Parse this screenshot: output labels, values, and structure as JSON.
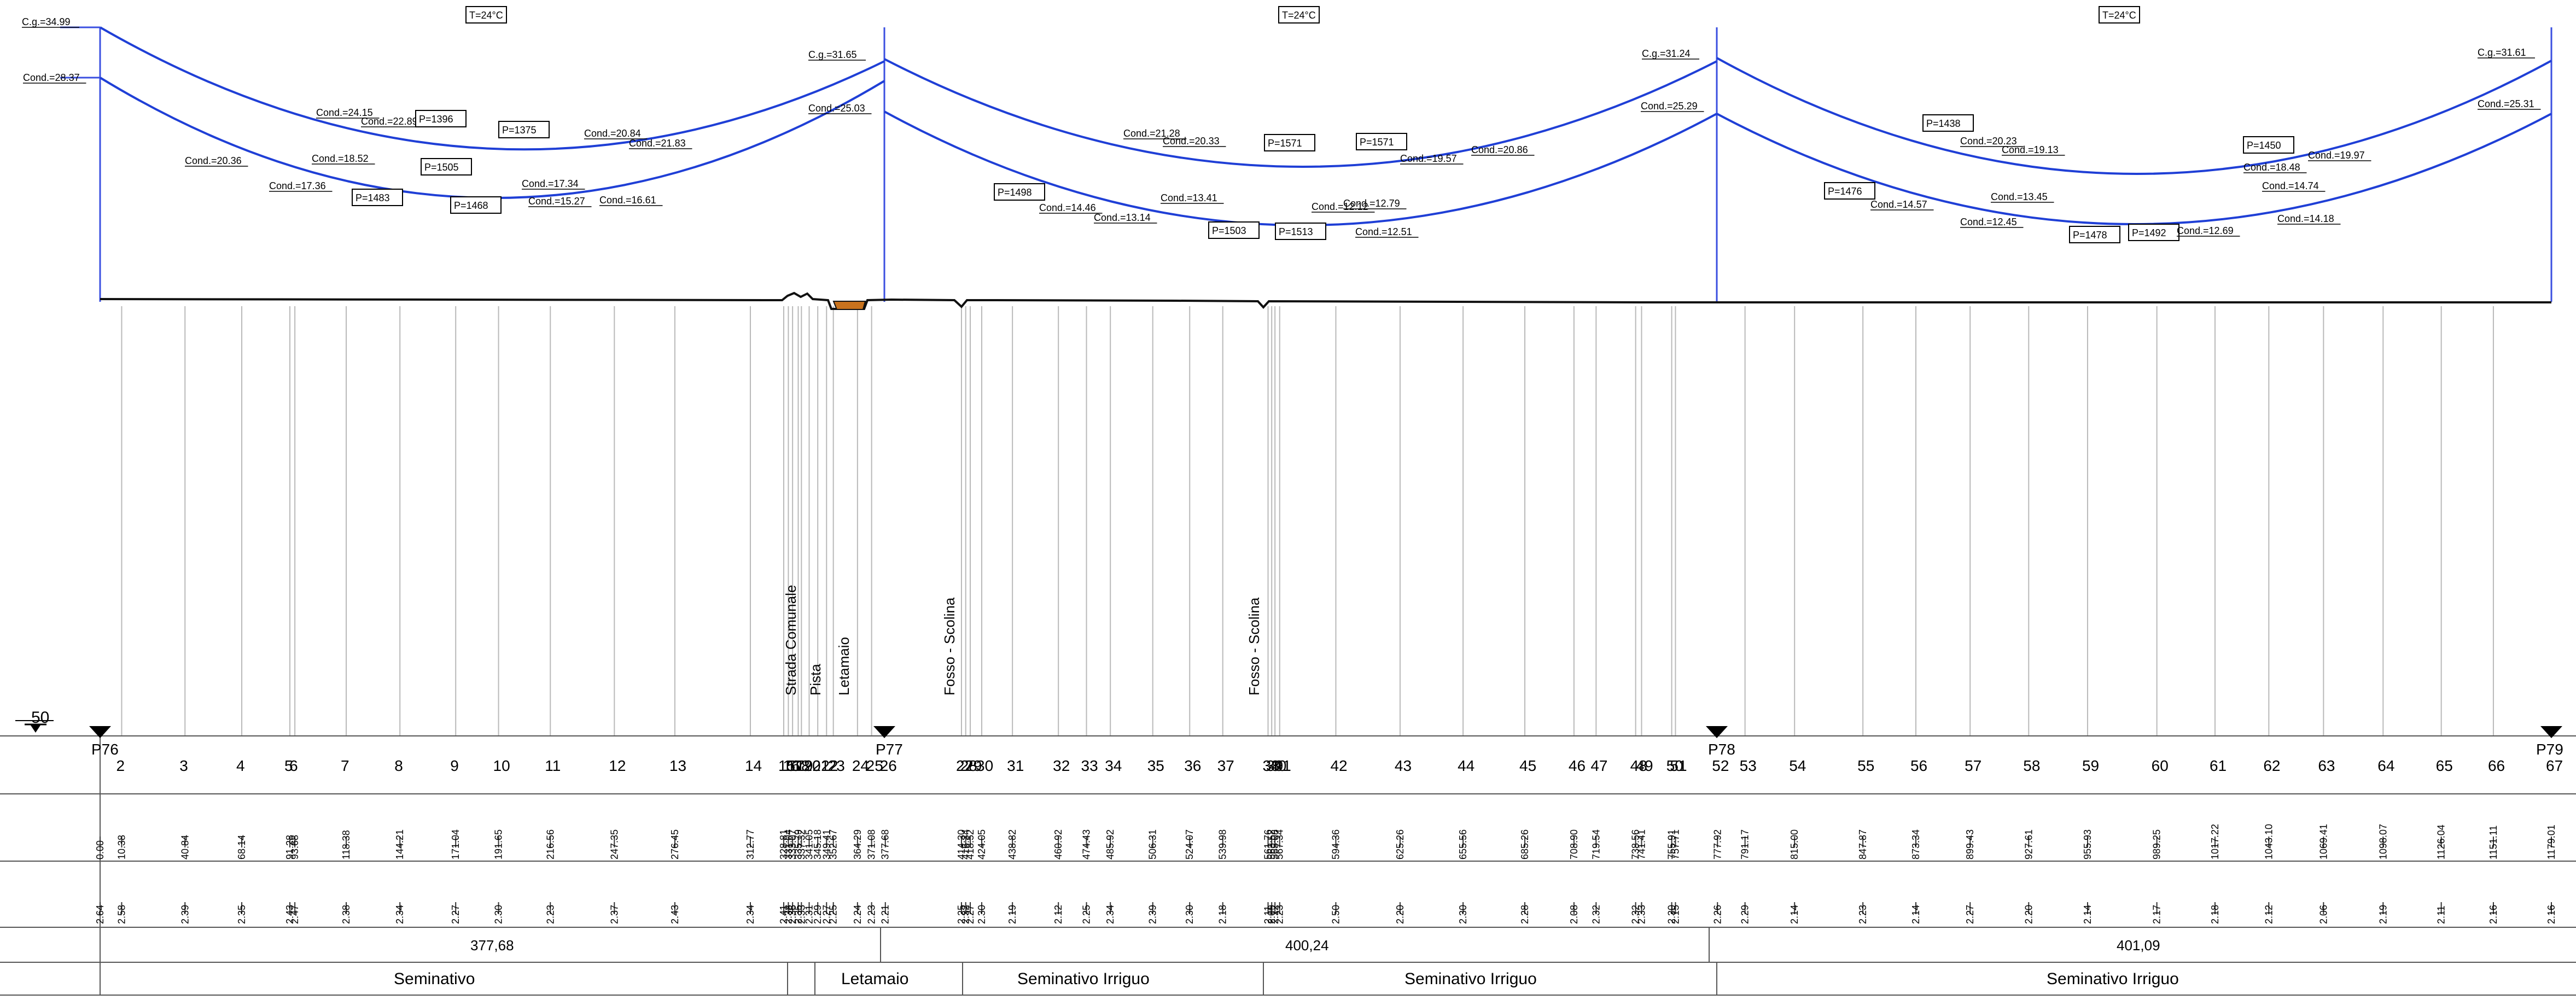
{
  "scale_label": "50",
  "temp_labels": [
    "T=24°C",
    "T=24°C",
    "T=24°C"
  ],
  "spans": [
    {
      "top": [
        {
          "text": "C.g.=34.99"
        },
        {
          "text": "Cond.=24.15"
        },
        {
          "text": "Cond.=22.89"
        },
        {
          "text": "P=1396",
          "box": true
        },
        {
          "text": "P=1375",
          "box": true
        },
        {
          "text": "Cond.=20.84"
        },
        {
          "text": "Cond.=21.83"
        },
        {
          "text": "C.g.=31.65"
        }
      ],
      "bottom": [
        {
          "text": "Cond.=28.37"
        },
        {
          "text": "Cond.=20.36"
        },
        {
          "text": "Cond.=18.52"
        },
        {
          "text": "P=1505",
          "box": true
        },
        {
          "text": "Cond.=17.36"
        },
        {
          "text": "P=1483",
          "box": true
        },
        {
          "text": "P=1468",
          "box": true
        },
        {
          "text": "Cond.=17.34"
        },
        {
          "text": "Cond.=15.27"
        },
        {
          "text": "Cond.=16.61"
        },
        {
          "text": "Cond.=25.03"
        }
      ]
    },
    {
      "top": [
        {
          "text": "Cond.=21.28"
        },
        {
          "text": "Cond.=20.33"
        },
        {
          "text": "P=1571",
          "box": true
        },
        {
          "text": "P=1571",
          "box": true
        },
        {
          "text": "Cond.=19.57"
        },
        {
          "text": "Cond.=20.86"
        },
        {
          "text": "C.g.=31.24"
        }
      ],
      "bottom": [
        {
          "text": "P=1498",
          "box": true
        },
        {
          "text": "Cond.=14.46"
        },
        {
          "text": "Cond.=13.14"
        },
        {
          "text": "Cond.=13.41"
        },
        {
          "text": "P=1503",
          "box": true
        },
        {
          "text": "P=1513",
          "box": true
        },
        {
          "text": "Cond.=12.12"
        },
        {
          "text": "Cond.=12.79"
        },
        {
          "text": "Cond.=12.51"
        },
        {
          "text": "Cond.=25.29"
        }
      ]
    },
    {
      "top": [
        {
          "text": "P=1438",
          "box": true
        },
        {
          "text": "Cond.=20.23"
        },
        {
          "text": "Cond.=19.13"
        },
        {
          "text": "P=1450",
          "box": true
        },
        {
          "text": "Cond.=18.48"
        },
        {
          "text": "Cond.=19.97"
        },
        {
          "text": "C.g.=31.61"
        }
      ],
      "bottom": [
        {
          "text": "P=1476",
          "box": true
        },
        {
          "text": "Cond.=14.57"
        },
        {
          "text": "Cond.=13.45"
        },
        {
          "text": "Cond.=12.45"
        },
        {
          "text": "P=1478",
          "box": true
        },
        {
          "text": "P=1492",
          "box": true
        },
        {
          "text": "Cond.=12.69"
        },
        {
          "text": "Cond.=14.74"
        },
        {
          "text": "Cond.=14.18"
        },
        {
          "text": "Cond.=25.31"
        }
      ]
    }
  ],
  "crossings": [
    "Strada Comunale",
    "Pista",
    "Letamaio",
    "Fosso - Scolina",
    "Fosso - Scolina"
  ],
  "towers": [
    "P76",
    "P77",
    "P78",
    "P79"
  ],
  "stations": [
    {
      "n": "",
      "d": "0.00",
      "h": "2.64"
    },
    {
      "n": "2",
      "d": "10.38",
      "h": "2.58"
    },
    {
      "n": "3",
      "d": "40.84",
      "h": "2.39"
    },
    {
      "n": "4",
      "d": "68.14",
      "h": "2.35"
    },
    {
      "n": "5",
      "d": "91.28",
      "h": "2.43"
    },
    {
      "n": "6",
      "d": "93.68",
      "h": "2.47"
    },
    {
      "n": "7",
      "d": "118.38",
      "h": "2.38"
    },
    {
      "n": "8",
      "d": "144.21",
      "h": "2.34"
    },
    {
      "n": "9",
      "d": "171.04",
      "h": "2.27"
    },
    {
      "n": "10",
      "d": "191.65",
      "h": "2.30"
    },
    {
      "n": "11",
      "d": "216.56",
      "h": "2.23"
    },
    {
      "n": "12",
      "d": "247.35",
      "h": "2.37"
    },
    {
      "n": "13",
      "d": "276.45",
      "h": "2.43"
    },
    {
      "n": "14",
      "d": "312.77",
      "h": "2.34"
    },
    {
      "n": "15",
      "d": "328.81",
      "h": "2.41"
    },
    {
      "n": "16",
      "d": "331.04",
      "h": "2.38"
    },
    {
      "n": "17",
      "d": "333.07",
      "h": "2.36"
    },
    {
      "n": "18",
      "d": "335.79",
      "h": "2.35"
    },
    {
      "n": "19",
      "d": "337.32",
      "h": "2.33"
    },
    {
      "n": "20",
      "d": "341.05",
      "h": "2.31"
    },
    {
      "n": "21",
      "d": "345.18",
      "h": "2.29"
    },
    {
      "n": "22",
      "d": "349.41",
      "h": "2.27"
    },
    {
      "n": "23",
      "d": "352.67",
      "h": "2.25"
    },
    {
      "n": "24",
      "d": "364.29",
      "h": "2.24"
    },
    {
      "n": "25",
      "d": "371.08",
      "h": "2.23"
    },
    {
      "n": "26",
      "d": "377.68",
      "h": "2.21"
    },
    {
      "n": "27",
      "d": "414.30",
      "h": "2.25"
    },
    {
      "n": "28",
      "d": "416.34",
      "h": "2.32"
    },
    {
      "n": "29",
      "d": "418.52",
      "h": "2.27"
    },
    {
      "n": "30",
      "d": "424.05",
      "h": "2.30"
    },
    {
      "n": "31",
      "d": "438.82",
      "h": "2.19"
    },
    {
      "n": "32",
      "d": "460.92",
      "h": "2.12"
    },
    {
      "n": "33",
      "d": "474.43",
      "h": "2.25"
    },
    {
      "n": "34",
      "d": "485.92",
      "h": "2.34"
    },
    {
      "n": "35",
      "d": "506.31",
      "h": "2.39"
    },
    {
      "n": "36",
      "d": "524.07",
      "h": "2.30"
    },
    {
      "n": "37",
      "d": "539.98",
      "h": "2.18"
    },
    {
      "n": "38",
      "d": "561.76",
      "h": "2.11"
    },
    {
      "n": "39",
      "d": "563.52",
      "h": "2.09"
    },
    {
      "n": "40",
      "d": "565.08",
      "h": "2.12"
    },
    {
      "n": "41",
      "d": "567.34",
      "h": "2.23"
    },
    {
      "n": "42",
      "d": "594.36",
      "h": "2.50"
    },
    {
      "n": "43",
      "d": "625.26",
      "h": "2.20"
    },
    {
      "n": "44",
      "d": "655.56",
      "h": "2.30"
    },
    {
      "n": "45",
      "d": "685.26",
      "h": "2.28"
    },
    {
      "n": "46",
      "d": "708.90",
      "h": "2.08"
    },
    {
      "n": "47",
      "d": "719.54",
      "h": "2.32"
    },
    {
      "n": "48",
      "d": "738.56",
      "h": "2.32"
    },
    {
      "n": "49",
      "d": "741.41",
      "h": "2.33"
    },
    {
      "n": "50",
      "d": "755.91",
      "h": "2.30"
    },
    {
      "n": "51",
      "d": "757.71",
      "h": "2.15"
    },
    {
      "n": "52",
      "d": "777.92",
      "h": "2.26"
    },
    {
      "n": "53",
      "d": "791.17",
      "h": "2.29"
    },
    {
      "n": "54",
      "d": "815.00",
      "h": "2.14"
    },
    {
      "n": "55",
      "d": "847.87",
      "h": "2.23"
    },
    {
      "n": "56",
      "d": "873.34",
      "h": "2.14"
    },
    {
      "n": "57",
      "d": "899.43",
      "h": "2.27"
    },
    {
      "n": "58",
      "d": "927.61",
      "h": "2.20"
    },
    {
      "n": "59",
      "d": "955.93",
      "h": "2.14"
    },
    {
      "n": "60",
      "d": "989.25",
      "h": "2.17"
    },
    {
      "n": "61",
      "d": "1017.22",
      "h": "2.18"
    },
    {
      "n": "62",
      "d": "1043.10",
      "h": "2.12"
    },
    {
      "n": "63",
      "d": "1069.41",
      "h": "2.06"
    },
    {
      "n": "64",
      "d": "1098.07",
      "h": "2.19"
    },
    {
      "n": "65",
      "d": "1126.04",
      "h": "2.11"
    },
    {
      "n": "66",
      "d": "1151.11",
      "h": "2.16"
    },
    {
      "n": "67",
      "d": "1179.01",
      "h": "2.16"
    }
  ],
  "span_lengths": [
    "377,68",
    "400,24",
    "401,09"
  ],
  "land_use": [
    "Seminativo",
    "Letamaio",
    "Seminativo Irriguo",
    "Seminativo Irriguo",
    "Seminativo Irriguo"
  ],
  "colors": {
    "cable": "#1f3fd6",
    "tower": "#3a4fe0",
    "ground": "#111111",
    "manure_pit": "#c8721d"
  }
}
